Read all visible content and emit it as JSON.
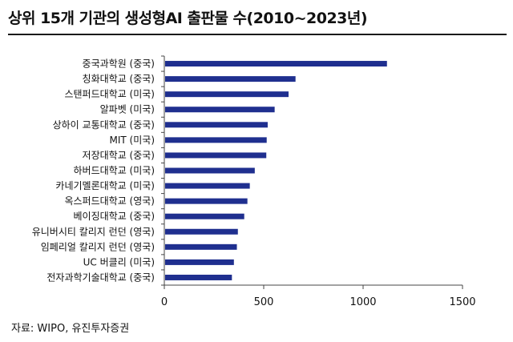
{
  "title": "상위 15개 기관의 생성형AI 출판물 수(2010~2023년)",
  "source": "자료: WIPO, 유진투자증권",
  "chart_data": {
    "type": "bar",
    "orientation": "horizontal",
    "title": "상위 15개 기관의 생성형AI 출판물 수(2010~2023년)",
    "xlabel": "",
    "ylabel": "",
    "xlim": [
      0,
      1500
    ],
    "xticks": [
      0,
      500,
      1000,
      1500
    ],
    "grid": false,
    "bar_color": "#1f2f8f",
    "categories": [
      "중국과학원 (중국)",
      "칭화대학교 (중국)",
      "스탠퍼드대학교 (미국)",
      "알파벳 (미국)",
      "상하이 교통대학교 (중국)",
      "MIT (미국)",
      "저장대학교 (중국)",
      "하버드대학교 (미국)",
      "카네기멜론대학교 (미국)",
      "옥스퍼드대학교 (영국)",
      "베이징대학교 (중국)",
      "유니버시티 칼리지 런던 (영국)",
      "임페리얼 칼리지 런던 (영국)",
      "UC 버클리 (미국)",
      "전자과학기술대학교 (중국)"
    ],
    "values": [
      1120,
      660,
      625,
      555,
      520,
      515,
      513,
      455,
      430,
      418,
      402,
      370,
      365,
      350,
      340
    ]
  }
}
